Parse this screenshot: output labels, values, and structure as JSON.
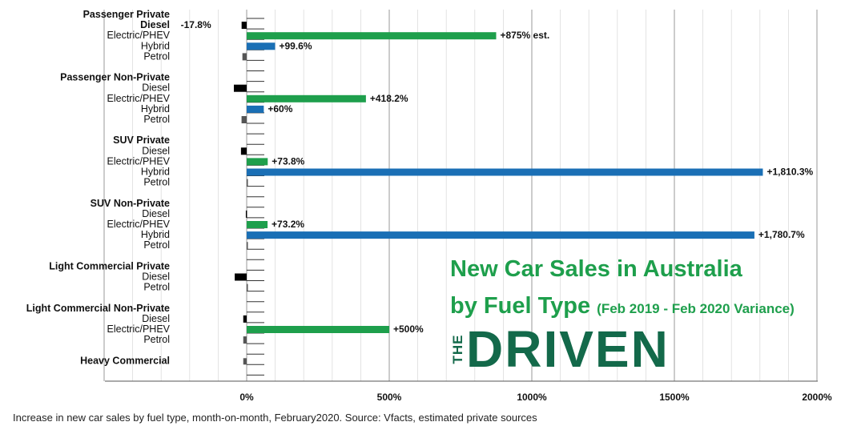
{
  "chart_data": {
    "type": "bar",
    "orientation": "horizontal",
    "x_ticks": [
      "0%",
      "500%",
      "1000%",
      "1500%",
      "2000%"
    ],
    "xlim": [
      -500,
      2000
    ],
    "grid": true,
    "groups": [
      {
        "name": "Passenger Private",
        "items": [
          {
            "label": "Diesel",
            "value": -17.8,
            "data_label": "-17.8%",
            "color": "#000000",
            "bold": true
          },
          {
            "label": "Electric/PHEV",
            "value": 875,
            "data_label": "+875% est.",
            "color": "#1e9f4c"
          },
          {
            "label": "Hybrid",
            "value": 99.6,
            "data_label": "+99.6%",
            "color": "#1a6fb5"
          },
          {
            "label": "Petrol",
            "value": -15,
            "data_label": "",
            "color": "#555555"
          }
        ]
      },
      {
        "name": "Passenger Non-Private",
        "items": [
          {
            "label": "Diesel",
            "value": -45,
            "data_label": "",
            "color": "#000000"
          },
          {
            "label": "Electric/PHEV",
            "value": 418.2,
            "data_label": "+418.2%",
            "color": "#1e9f4c"
          },
          {
            "label": "Hybrid",
            "value": 60,
            "data_label": "+60%",
            "color": "#1a6fb5"
          },
          {
            "label": "Petrol",
            "value": -18,
            "data_label": "",
            "color": "#555555"
          }
        ]
      },
      {
        "name": "SUV Private",
        "items": [
          {
            "label": "Diesel",
            "value": -20,
            "data_label": "",
            "color": "#000000"
          },
          {
            "label": "Electric/PHEV",
            "value": 73.8,
            "data_label": "+73.8%",
            "color": "#1e9f4c"
          },
          {
            "label": "Hybrid",
            "value": 1810.3,
            "data_label": "+1,810.3%",
            "color": "#1a6fb5"
          },
          {
            "label": "Petrol",
            "value": 3,
            "data_label": "",
            "color": "#555555"
          }
        ]
      },
      {
        "name": "SUV Non-Private",
        "items": [
          {
            "label": "Diesel",
            "value": -3,
            "data_label": "",
            "color": "#000000"
          },
          {
            "label": "Electric/PHEV",
            "value": 73.2,
            "data_label": "+73.2%",
            "color": "#1e9f4c"
          },
          {
            "label": "Hybrid",
            "value": 1780.7,
            "data_label": "+1,780.7%",
            "color": "#1a6fb5"
          },
          {
            "label": "Petrol",
            "value": 2,
            "data_label": "",
            "color": "#555555"
          }
        ]
      },
      {
        "name": "Light Commercial Private",
        "items": [
          {
            "label": "Diesel",
            "value": -42,
            "data_label": "",
            "color": "#000000"
          },
          {
            "label": "Petrol",
            "value": 2,
            "data_label": "",
            "color": "#555555"
          }
        ]
      },
      {
        "name": "Light Commercial Non-Private",
        "items": [
          {
            "label": "Diesel",
            "value": -12,
            "data_label": "",
            "color": "#000000"
          },
          {
            "label": "Electric/PHEV",
            "value": 500,
            "data_label": "+500%",
            "color": "#1e9f4c"
          },
          {
            "label": "Petrol",
            "value": -12,
            "data_label": "",
            "color": "#555555"
          }
        ]
      },
      {
        "name": "Heavy Commercial",
        "items": [
          {
            "label": "",
            "value": -12,
            "data_label": "",
            "color": "#555555"
          }
        ]
      }
    ]
  },
  "title": {
    "line1": "New Car Sales in Australia",
    "line2": "by Fuel Type",
    "line2_sub": "(Feb 2019 - Feb 2020 Variance)"
  },
  "logo": {
    "side_text": "THE",
    "main_text": "DRIVEN"
  },
  "caption": "Increase in new car sales by fuel type, month-on-month, February2020. Source: Vfacts, estimated private sources"
}
